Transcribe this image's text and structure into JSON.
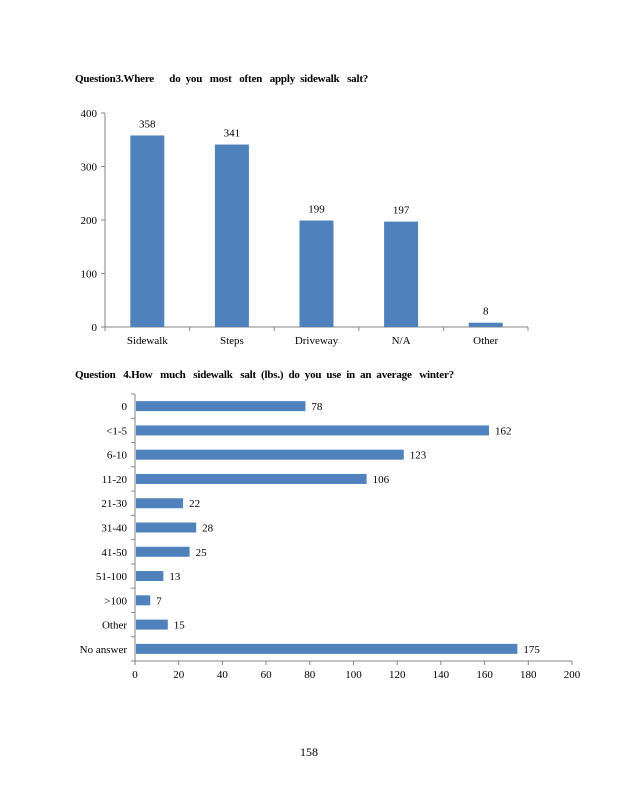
{
  "chart_data": [
    {
      "type": "bar",
      "orientation": "vertical",
      "title": "Question3.Where      do  you   most   often   apply  sidewalk   salt?",
      "categories": [
        "Sidewalk",
        "Steps",
        "Driveway",
        "N/A",
        "Other"
      ],
      "values": [
        358,
        341,
        199,
        197,
        8
      ],
      "data_labels": [
        "358",
        "341",
        "199",
        "197",
        "8"
      ],
      "yticks": [
        "0",
        "100",
        "200",
        "300",
        "400"
      ],
      "ylim": [
        0,
        400
      ],
      "xlabel": "",
      "ylabel": "",
      "grid": false,
      "color": "#4F81BD"
    },
    {
      "type": "bar",
      "orientation": "horizontal",
      "title": "Question   4.How   much   sidewalk   salt  (lbs.)  do  you  use  in  an  average   winter?",
      "categories": [
        "0",
        "<1-5",
        "6-10",
        "11-20",
        "21-30",
        "31-40",
        "41-50",
        "51-100",
        ">100",
        "Other",
        "No answer"
      ],
      "values": [
        78,
        162,
        123,
        106,
        22,
        28,
        25,
        13,
        7,
        15,
        175
      ],
      "data_labels": [
        "78",
        "162",
        "123",
        "106",
        "22",
        "28",
        "25",
        "13",
        "7",
        "15",
        "175"
      ],
      "xticks": [
        "0",
        "20",
        "40",
        "60",
        "80",
        "100",
        "120",
        "140",
        "160",
        "180",
        "200"
      ],
      "xlim": [
        0,
        200
      ],
      "xlabel": "",
      "ylabel": "",
      "grid": false,
      "color": "#4F81BD"
    }
  ],
  "page_number": "158"
}
